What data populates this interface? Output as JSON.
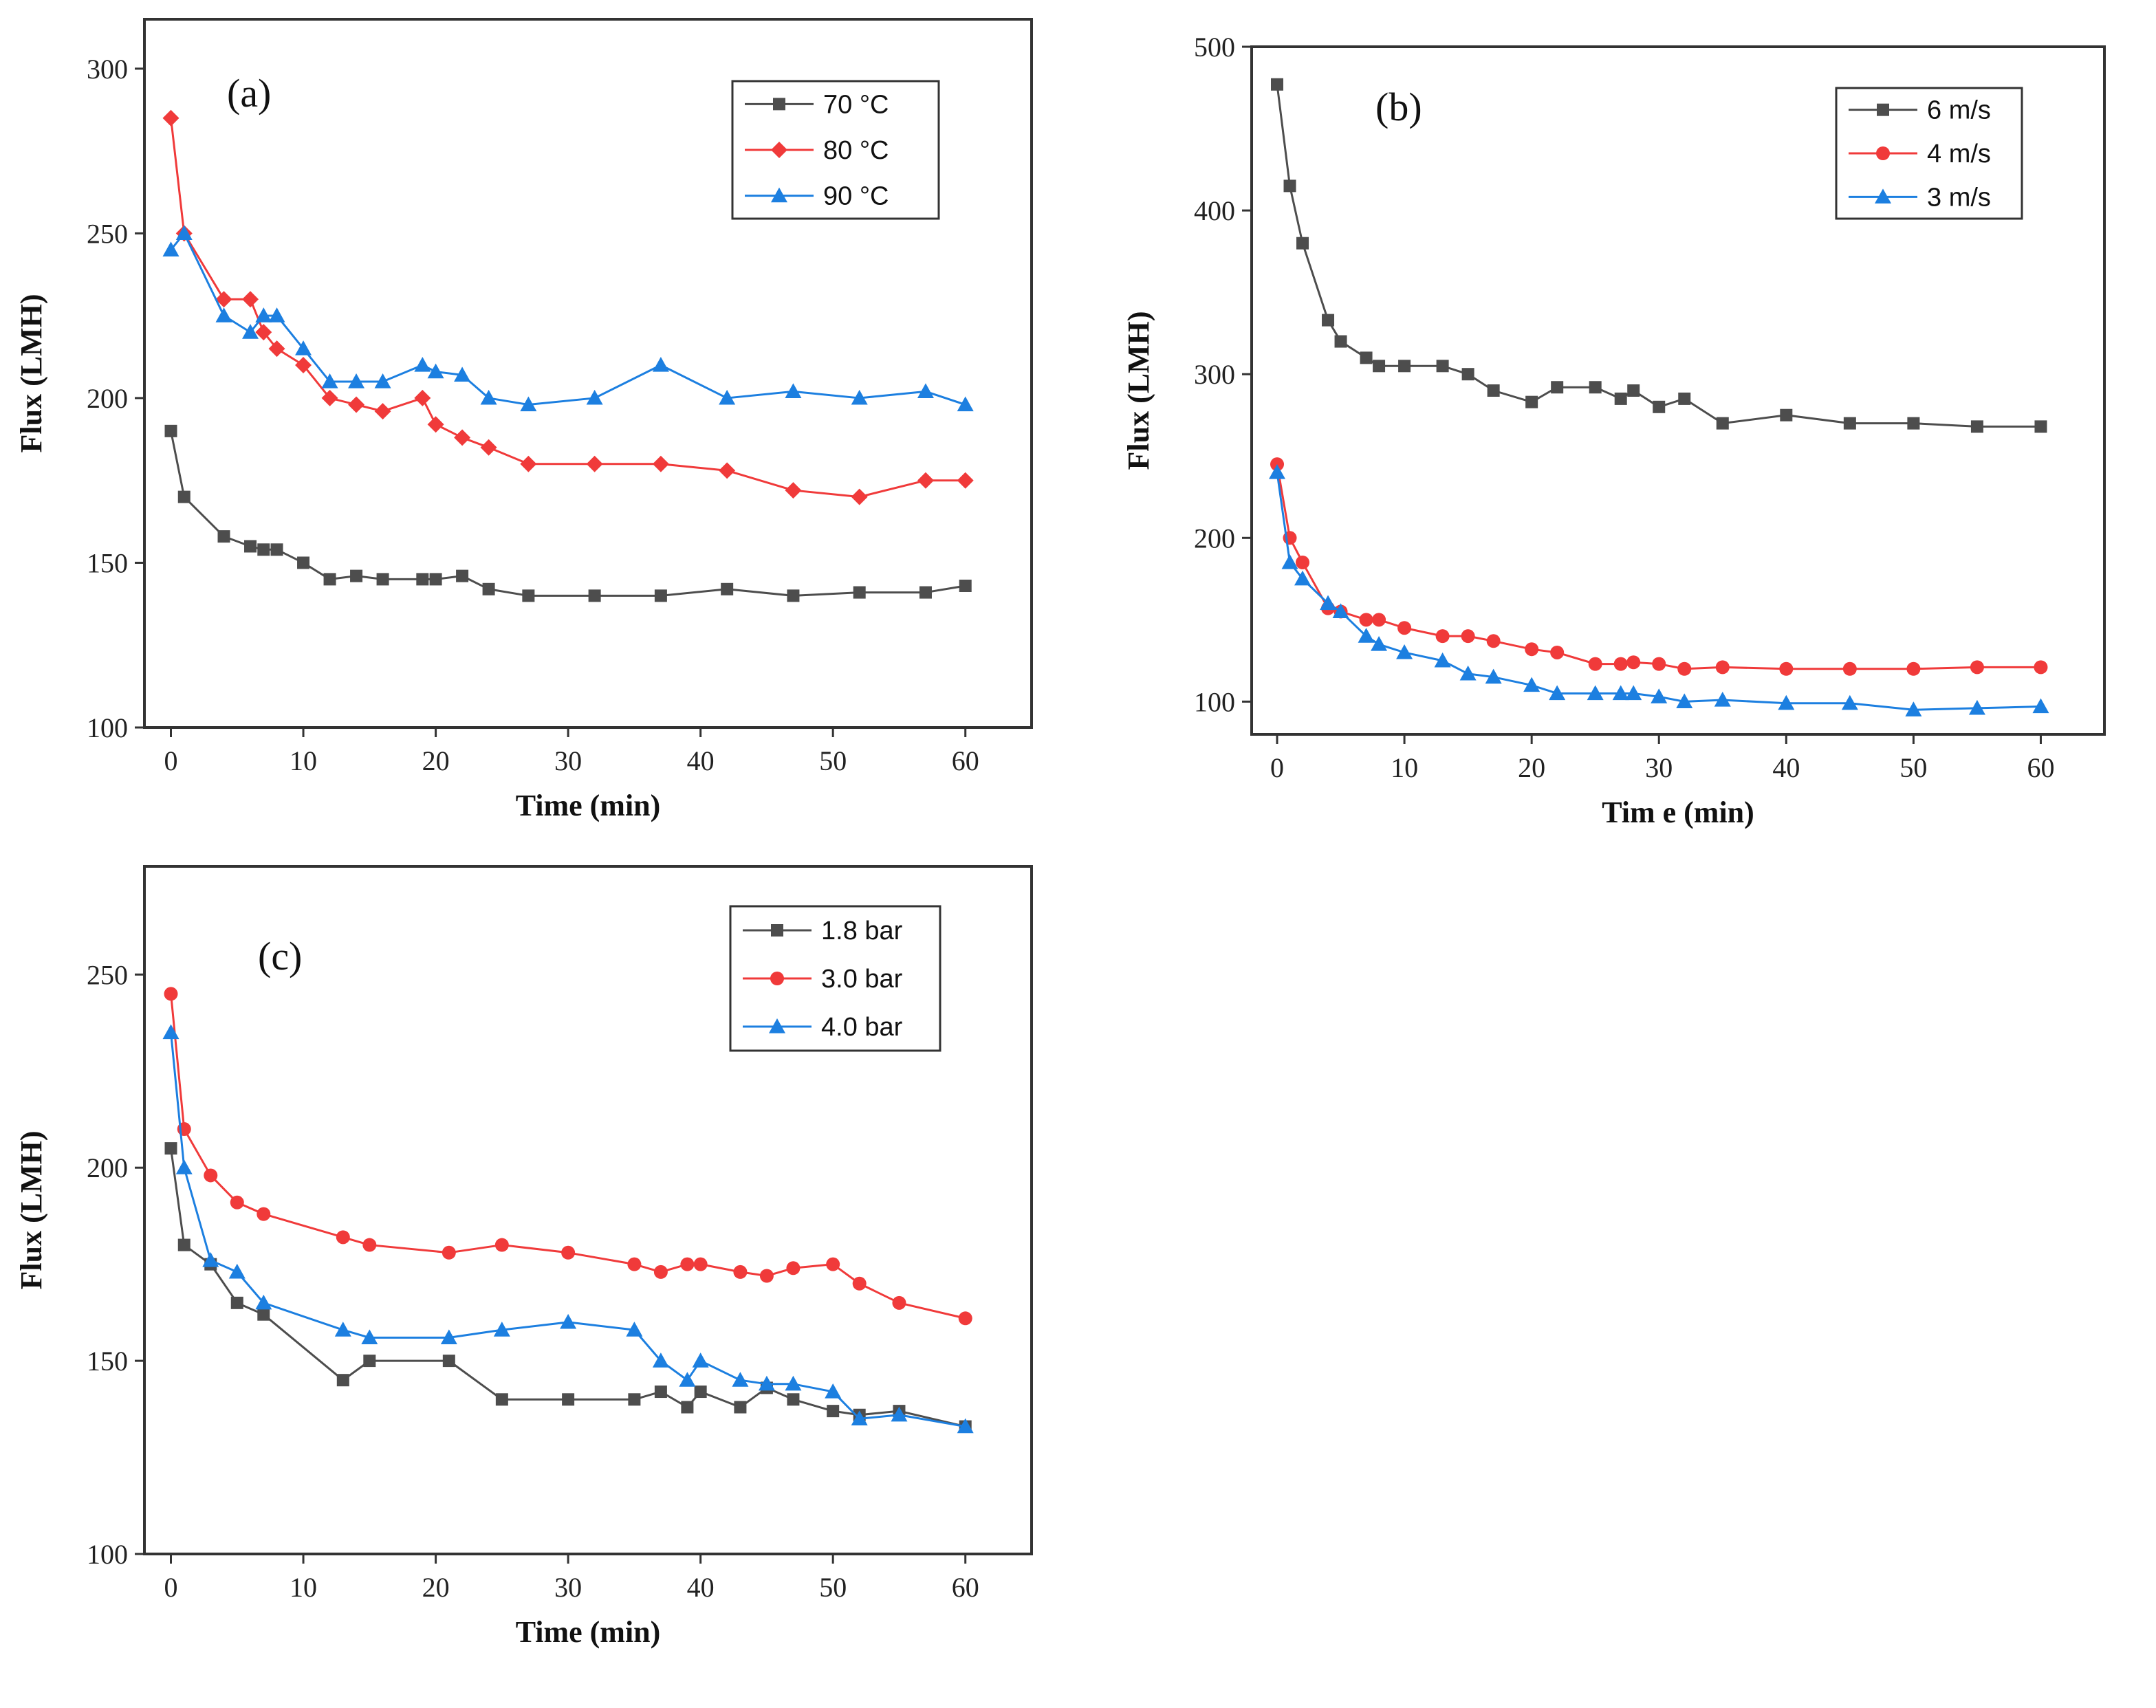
{
  "colors": {
    "black": "#4d4d4d",
    "red": "#f03a3a",
    "blue": "#1c7fe0"
  },
  "chart_data": [
    {
      "type": "line",
      "panel_label": "(a)",
      "xlabel": "Time (min)",
      "ylabel": "Flux (LMH)",
      "xlim": [
        -2,
        65
      ],
      "ylim": [
        100,
        315
      ],
      "xticks": [
        0,
        10,
        20,
        30,
        40,
        50,
        60
      ],
      "yticks": [
        100,
        150,
        200,
        250,
        300
      ],
      "legend_position": "top-right",
      "series": [
        {
          "name": "70 °C",
          "color": "black",
          "marker": "square",
          "x": [
            0,
            1,
            4,
            6,
            7,
            8,
            10,
            12,
            14,
            16,
            19,
            20,
            22,
            24,
            27,
            32,
            37,
            42,
            47,
            52,
            57,
            60
          ],
          "y": [
            190,
            170,
            158,
            155,
            154,
            154,
            150,
            145,
            146,
            145,
            145,
            145,
            146,
            142,
            140,
            140,
            140,
            142,
            140,
            141,
            141,
            143
          ]
        },
        {
          "name": "80 °C",
          "color": "red",
          "marker": "diamond",
          "x": [
            0,
            1,
            4,
            6,
            7,
            8,
            10,
            12,
            14,
            16,
            19,
            20,
            22,
            24,
            27,
            32,
            37,
            42,
            47,
            52,
            57,
            60
          ],
          "y": [
            285,
            250,
            230,
            230,
            220,
            215,
            210,
            200,
            198,
            196,
            200,
            192,
            188,
            185,
            180,
            180,
            180,
            178,
            172,
            170,
            175,
            175
          ]
        },
        {
          "name": "90 °C",
          "color": "blue",
          "marker": "triangle",
          "x": [
            0,
            1,
            4,
            6,
            7,
            8,
            10,
            12,
            14,
            16,
            19,
            20,
            22,
            24,
            27,
            32,
            37,
            42,
            47,
            52,
            57,
            60
          ],
          "y": [
            245,
            250,
            225,
            220,
            225,
            225,
            215,
            205,
            205,
            205,
            210,
            208,
            207,
            200,
            198,
            200,
            210,
            200,
            202,
            200,
            202,
            198
          ]
        }
      ]
    },
    {
      "type": "line",
      "panel_label": "(b)",
      "xlabel": "Tim e (min)",
      "ylabel": "Flux (LMH)",
      "xlim": [
        -2,
        65
      ],
      "ylim": [
        80,
        500
      ],
      "xticks": [
        0,
        10,
        20,
        30,
        40,
        50,
        60
      ],
      "yticks": [
        100,
        200,
        300,
        400,
        500
      ],
      "legend_position": "top-right",
      "series": [
        {
          "name": "6 m/s",
          "color": "black",
          "marker": "square",
          "x": [
            0,
            1,
            2,
            4,
            5,
            7,
            8,
            10,
            13,
            15,
            17,
            20,
            22,
            25,
            27,
            28,
            30,
            32,
            35,
            40,
            45,
            50,
            55,
            60
          ],
          "y": [
            477,
            415,
            380,
            333,
            320,
            310,
            305,
            305,
            305,
            300,
            290,
            283,
            292,
            292,
            285,
            290,
            280,
            285,
            270,
            275,
            270,
            270,
            268,
            268
          ]
        },
        {
          "name": "4 m/s",
          "color": "red",
          "marker": "circle",
          "x": [
            0,
            1,
            2,
            4,
            5,
            7,
            8,
            10,
            13,
            15,
            17,
            20,
            22,
            25,
            27,
            28,
            30,
            32,
            35,
            40,
            45,
            50,
            55,
            60
          ],
          "y": [
            245,
            200,
            185,
            157,
            155,
            150,
            150,
            145,
            140,
            140,
            137,
            132,
            130,
            123,
            123,
            124,
            123,
            120,
            121,
            120,
            120,
            120,
            121,
            121
          ]
        },
        {
          "name": "3 m/s",
          "color": "blue",
          "marker": "triangle",
          "x": [
            0,
            1,
            2,
            4,
            5,
            7,
            8,
            10,
            13,
            15,
            17,
            20,
            22,
            25,
            27,
            28,
            30,
            32,
            35,
            40,
            45,
            50,
            55,
            60
          ],
          "y": [
            240,
            185,
            175,
            160,
            155,
            140,
            135,
            130,
            125,
            117,
            115,
            110,
            105,
            105,
            105,
            105,
            103,
            100,
            101,
            99,
            99,
            95,
            96,
            97
          ]
        }
      ]
    },
    {
      "type": "line",
      "panel_label": "(c)",
      "xlabel": "Time (min)",
      "ylabel": "Flux (LMH)",
      "xlim": [
        -2,
        65
      ],
      "ylim": [
        100,
        278
      ],
      "xticks": [
        0,
        10,
        20,
        30,
        40,
        50,
        60
      ],
      "yticks": [
        100,
        150,
        200,
        250
      ],
      "legend_position": "top-right",
      "series": [
        {
          "name": "1.8 bar",
          "color": "black",
          "marker": "square",
          "x": [
            0,
            1,
            3,
            5,
            7,
            13,
            15,
            21,
            25,
            30,
            35,
            37,
            39,
            40,
            43,
            45,
            47,
            50,
            52,
            55,
            60
          ],
          "y": [
            205,
            180,
            175,
            165,
            162,
            145,
            150,
            150,
            140,
            140,
            140,
            142,
            138,
            142,
            138,
            143,
            140,
            137,
            136,
            137,
            133
          ]
        },
        {
          "name": "3.0 bar",
          "color": "red",
          "marker": "circle",
          "x": [
            0,
            1,
            3,
            5,
            7,
            13,
            15,
            21,
            25,
            30,
            35,
            37,
            39,
            40,
            43,
            45,
            47,
            50,
            52,
            55,
            60
          ],
          "y": [
            245,
            210,
            198,
            191,
            188,
            182,
            180,
            178,
            180,
            178,
            175,
            173,
            175,
            175,
            173,
            172,
            174,
            175,
            170,
            165,
            161
          ]
        },
        {
          "name": "4.0 bar",
          "color": "blue",
          "marker": "triangle",
          "x": [
            0,
            1,
            3,
            5,
            7,
            13,
            15,
            21,
            25,
            30,
            35,
            37,
            39,
            40,
            43,
            45,
            47,
            50,
            52,
            55,
            60
          ],
          "y": [
            235,
            200,
            176,
            173,
            165,
            158,
            156,
            156,
            158,
            160,
            158,
            150,
            145,
            150,
            145,
            144,
            144,
            142,
            135,
            136,
            133
          ]
        }
      ]
    }
  ]
}
